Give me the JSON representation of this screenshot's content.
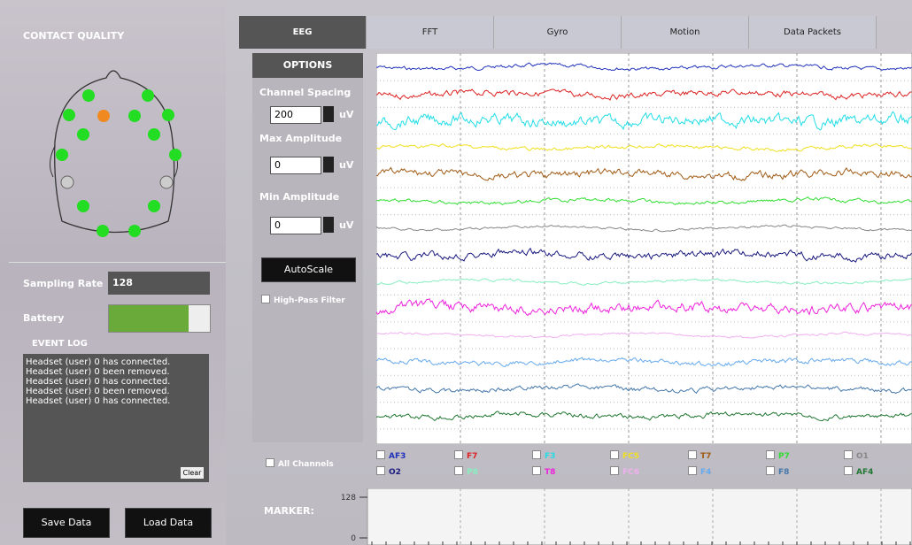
{
  "left": {
    "contact_quality": "CONTACT QUALITY",
    "sampling_rate_label": "Sampling Rate",
    "sampling_rate": "128",
    "battery_label": "Battery",
    "event_log_label": "EVENT LOG",
    "event_log": [
      "Headset (user) 0 has connected.",
      "Headset (user) 0 been removed.",
      "Headset (user) 0 has connected.",
      "Headset (user) 0 been removed.",
      "Headset (user) 0 has connected."
    ],
    "clear": "Clear",
    "save": "Save Data",
    "load": "Load Data"
  },
  "tabs": [
    "EEG",
    "FFT",
    "Gyro",
    "Motion",
    "Data Packets"
  ],
  "options": {
    "title": "OPTIONS",
    "channel_spacing": "Channel Spacing",
    "channel_spacing_value": "200",
    "max_amplitude": "Max Amplitude",
    "max_amplitude_value": "0",
    "min_amplitude": "Min Amplitude",
    "min_amplitude_value": "0",
    "unit": "uV",
    "autoscale": "AutoScale",
    "high_pass": "High-Pass Filter"
  },
  "channels": [
    {
      "label": "AF3",
      "color": "#2233bb"
    },
    {
      "label": "F7",
      "color": "#dd2222"
    },
    {
      "label": "F3",
      "color": "#22dde8"
    },
    {
      "label": "FC5",
      "color": "#f0e020"
    },
    {
      "label": "T7",
      "color": "#a05a14"
    },
    {
      "label": "P7",
      "color": "#33dd33"
    },
    {
      "label": "O1",
      "color": "#888888"
    },
    {
      "label": "O2",
      "color": "#1a1a80"
    },
    {
      "label": "P8",
      "color": "#88eec0"
    },
    {
      "label": "T8",
      "color": "#ee22dd"
    },
    {
      "label": "FC6",
      "color": "#f0b0f0"
    },
    {
      "label": "F4",
      "color": "#66aaee"
    },
    {
      "label": "F8",
      "color": "#4477aa"
    },
    {
      "label": "AF4",
      "color": "#227733"
    }
  ],
  "all_channels": "All Channels",
  "marker": {
    "label": "MARKER:",
    "yticks": [
      0,
      128
    ]
  }
}
